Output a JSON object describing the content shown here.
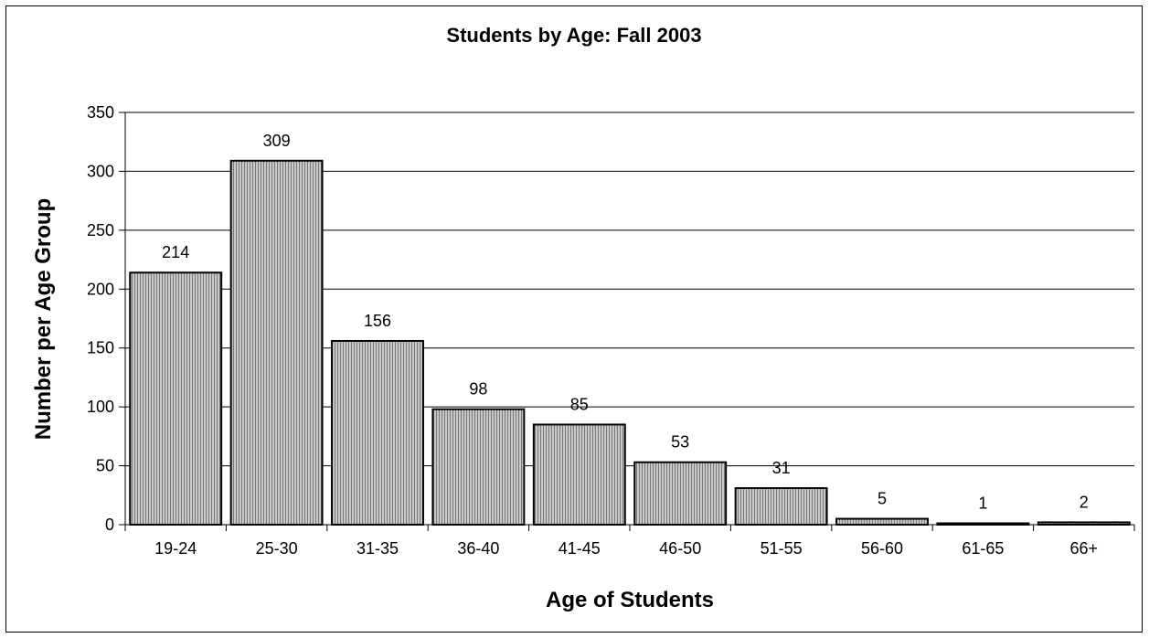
{
  "chart_data": {
    "type": "bar",
    "title": "Students by Age: Fall 2003",
    "xlabel": "Age of Students",
    "ylabel": "Number per Age Group",
    "categories": [
      "19-24",
      "25-30",
      "31-35",
      "36-40",
      "41-45",
      "46-50",
      "51-55",
      "56-60",
      "61-65",
      "66+"
    ],
    "values": [
      214,
      309,
      156,
      98,
      85,
      53,
      31,
      5,
      1,
      2
    ],
    "ylim": [
      0,
      350
    ],
    "yticks": [
      0,
      50,
      100,
      150,
      200,
      250,
      300,
      350
    ],
    "grid": true,
    "legend": "none",
    "colors": {
      "bar_fill": "#c8c8c8",
      "bar_stripe": "#7a7a7a",
      "bar_border": "#000000",
      "grid": "#000000"
    }
  }
}
